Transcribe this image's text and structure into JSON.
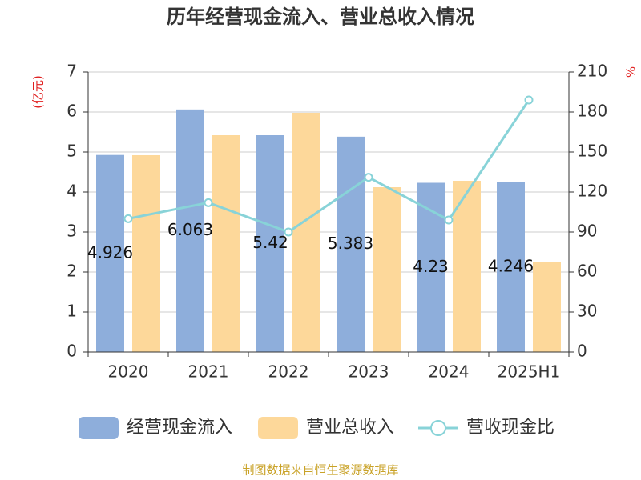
{
  "chart_data": {
    "type": "bar",
    "title": "历年经营现金流入、营业总收入情况",
    "y_label": "(亿元)",
    "y2_label": "%",
    "categories": [
      "2020",
      "2021",
      "2022",
      "2023",
      "2024",
      "2025H1"
    ],
    "series": [
      {
        "name": "经营现金流入",
        "type": "bar",
        "color": "#8eaedb",
        "values": [
          4.926,
          6.063,
          5.42,
          5.383,
          4.23,
          4.246
        ],
        "labels": true
      },
      {
        "name": "营业总收入",
        "type": "bar",
        "color": "#fdd89a",
        "values": [
          4.92,
          5.42,
          5.98,
          4.12,
          4.28,
          2.26
        ]
      },
      {
        "name": "营收现金比",
        "type": "line",
        "axis": "y2",
        "color": "#88d3d8",
        "values": [
          100,
          112,
          90,
          131,
          99,
          189
        ]
      }
    ],
    "ylim": [
      0,
      7
    ],
    "yticks": [
      0,
      1,
      2,
      3,
      4,
      5,
      6,
      7
    ],
    "y2lim": [
      0,
      210
    ],
    "y2ticks": [
      0,
      30,
      60,
      90,
      120,
      150,
      180,
      210
    ],
    "grid": true,
    "legend": "bottom",
    "source": "制图数据来自恒生聚源数据库"
  }
}
